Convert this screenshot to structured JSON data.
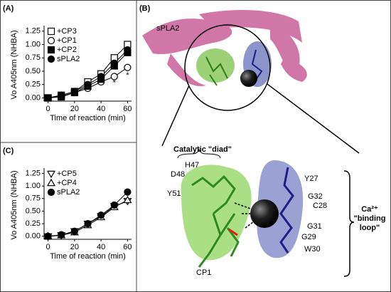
{
  "chart_data": [
    {
      "type": "line",
      "label": "(A)",
      "y_label": "Vo A405nm (NHBA)",
      "x_label": "Time of reaction (min)",
      "x": [
        0,
        10,
        20,
        30,
        40,
        50,
        60
      ],
      "xlim": [
        -3,
        63
      ],
      "xticks": [
        0,
        20,
        40,
        60
      ],
      "ylim": [
        -0.06,
        1.3
      ],
      "yticks": [
        {
          "value": 0,
          "label": "0.00"
        },
        {
          "value": 0.25,
          "label": "0.25"
        },
        {
          "value": 0.5,
          "label": "0.50"
        },
        {
          "value": 0.75,
          "label": "0.75"
        },
        {
          "value": 1,
          "label": "1.00"
        },
        {
          "value": 1.25,
          "label": "1.25"
        }
      ],
      "legend": "upper left",
      "series": [
        {
          "name": "+CP3",
          "color": "#000000",
          "marker": "square-open",
          "values": [
            0,
            0.05,
            0.12,
            0.3,
            0.45,
            0.75,
            1.0
          ]
        },
        {
          "name": "+CP1",
          "color": "#000000",
          "marker": "circle-open",
          "values": [
            0,
            0.03,
            0.1,
            0.18,
            0.3,
            0.4,
            0.57
          ]
        },
        {
          "name": "+CP2",
          "color": "#000000",
          "marker": "square-filled",
          "values": [
            0,
            0.02,
            0.1,
            0.22,
            0.35,
            0.6,
            0.85
          ]
        },
        {
          "name": "sPLA2",
          "color": "#000000",
          "marker": "circle-filled",
          "values": [
            0,
            0.05,
            0.12,
            0.25,
            0.4,
            0.65,
            0.9
          ]
        }
      ],
      "annotations": [
        {
          "text": "*",
          "x": 50,
          "y": 0.28
        },
        {
          "text": "*",
          "x": 60,
          "y": 0.42
        }
      ]
    },
    {
      "type": "line",
      "label": "(C)",
      "y_label": "Vo A405nm (NHBA)",
      "x_label": "Time of reaction (min)",
      "x": [
        0,
        10,
        20,
        30,
        40,
        50,
        60
      ],
      "xlim": [
        -3,
        63
      ],
      "xticks": [
        0,
        20,
        40,
        60
      ],
      "ylim": [
        -0.06,
        1.3
      ],
      "yticks": [
        {
          "value": 0,
          "label": "0.00"
        },
        {
          "value": 0.25,
          "label": "0.25"
        },
        {
          "value": 0.5,
          "label": "0.50"
        },
        {
          "value": 0.75,
          "label": "0.75"
        },
        {
          "value": 1,
          "label": "1.00"
        },
        {
          "value": 1.25,
          "label": "1.25"
        }
      ],
      "legend": "upper left",
      "series": [
        {
          "name": "+CP5",
          "color": "#000000",
          "marker": "triangle-down-open",
          "values": [
            0,
            0.02,
            0.1,
            0.25,
            0.4,
            0.6,
            0.7
          ]
        },
        {
          "name": "+CP4",
          "color": "#000000",
          "marker": "triangle-up-open",
          "values": [
            0,
            0.02,
            0.08,
            0.22,
            0.38,
            0.58,
            0.72
          ]
        },
        {
          "name": "sPLA2",
          "color": "#000000",
          "marker": "circle-filled",
          "values": [
            0,
            0.03,
            0.1,
            0.25,
            0.42,
            0.62,
            0.88
          ]
        }
      ]
    }
  ],
  "structure": {
    "label": "(B)",
    "protein": "sPLA2",
    "catalytic": "Catalytic \"diad\"",
    "residues": [
      "H47",
      "D48",
      "Y51",
      "Y27",
      "G32",
      "C28",
      "G31",
      "G29",
      "W30"
    ],
    "ligand": "CP1",
    "ca_label": [
      "Ca²⁺",
      "\"binding",
      "loop\""
    ]
  }
}
